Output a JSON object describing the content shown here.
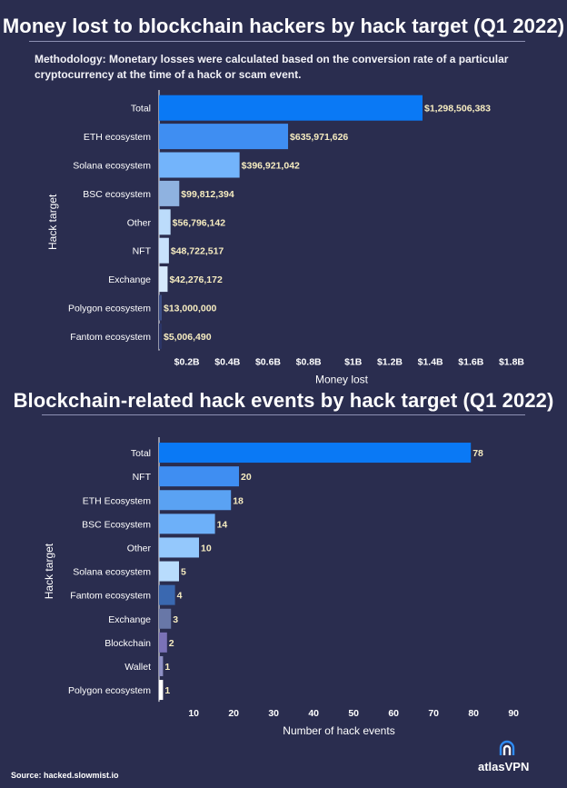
{
  "chart1": {
    "title": "Money lost to blockchain hackers by hack target (Q1 2022)",
    "methodology": "Methodology: Monetary losses were calculated based on the conversion rate of a particular cryptocurrency at the time of a hack or scam event."
  },
  "chart2": {
    "title": "Blockchain-related hack events by hack target (Q1 2022)"
  },
  "chart_data": [
    {
      "type": "bar",
      "orientation": "horizontal",
      "title": "Money lost to blockchain hackers by hack target (Q1 2022)",
      "xlabel": "Money lost",
      "ylabel": "Hack target",
      "categories": [
        "Total",
        "ETH ecosystem",
        "Solana ecosystem",
        "BSC ecosystem",
        "Other",
        "NFT",
        "Exchange",
        "Polygon ecosystem",
        "Fantom ecosystem"
      ],
      "values": [
        1298506383,
        635971626,
        396921042,
        99812394,
        56796142,
        48722517,
        42276172,
        13000000,
        5006490
      ],
      "value_labels": [
        "$1,298,506,383",
        "$635,971,626",
        "$396,921,042",
        "$99,812,394",
        "$56,796,142",
        "$48,722,517",
        "$42,276,172",
        "$13,000,000",
        "$5,006,490"
      ],
      "colors": [
        "#0a79f5",
        "#3f8ef2",
        "#73b4fb",
        "#8fb2e0",
        "#bcdcfb",
        "#c7e1fc",
        "#d6e9fd",
        "#3c4e86",
        "#2b3567"
      ],
      "xlim": [
        0,
        1800000000
      ],
      "xticks": [
        200000000,
        400000000,
        600000000,
        800000000,
        1000000000,
        1200000000,
        1400000000,
        1600000000,
        1800000000
      ],
      "xtick_labels": [
        "$0.2B",
        "$0.4B",
        "$0.6B",
        "$0.8B",
        "$1B",
        "$1.2B",
        "$1.4B",
        "$1.6B",
        "$1.8B"
      ]
    },
    {
      "type": "bar",
      "orientation": "horizontal",
      "title": "Blockchain-related hack events by hack target (Q1 2022)",
      "xlabel": "Number of hack events",
      "ylabel": "Hack target",
      "categories": [
        "Total",
        "NFT",
        "ETH Ecosystem",
        "BSC Ecosystem",
        "Other",
        "Solana ecosystem",
        "Fantom ecosystem",
        "Exchange",
        "Blockchain",
        "Wallet",
        "Polygon ecosystem"
      ],
      "values": [
        78,
        20,
        18,
        14,
        10,
        5,
        4,
        3,
        2,
        1,
        1
      ],
      "value_labels": [
        "78",
        "20",
        "18",
        "14",
        "10",
        "5",
        "4",
        "3",
        "2",
        "1",
        "1"
      ],
      "colors": [
        "#0a79f5",
        "#3f8ef2",
        "#5aa2f3",
        "#6db0f9",
        "#94c8fc",
        "#b8dcfd",
        "#3a68b0",
        "#6877a7",
        "#7a72b7",
        "#8d8fc4",
        "#ffffff"
      ],
      "xlim": [
        0,
        90
      ],
      "xticks": [
        10,
        20,
        30,
        40,
        50,
        60,
        70,
        80,
        90
      ],
      "xtick_labels": [
        "10",
        "20",
        "30",
        "40",
        "50",
        "60",
        "70",
        "80",
        "90"
      ]
    }
  ],
  "footer": {
    "source": "Source: hacked.slowmist.io",
    "brand": "atlasVPN"
  }
}
